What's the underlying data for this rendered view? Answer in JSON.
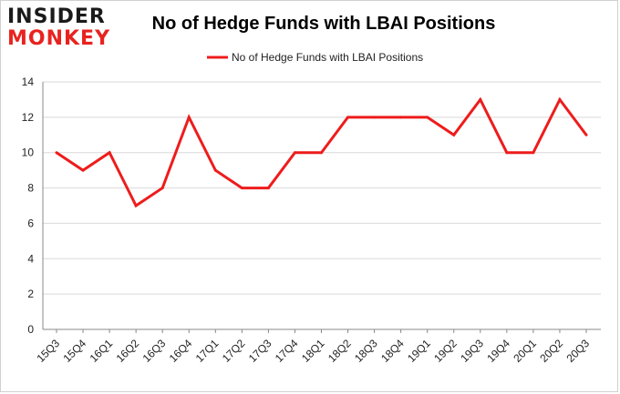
{
  "brand": {
    "line1": "INSIDER",
    "line2": "MONKEY"
  },
  "chart_data": {
    "type": "line",
    "title": "No of Hedge Funds with LBAI Positions",
    "xlabel": "",
    "ylabel": "",
    "categories": [
      "15Q3",
      "15Q4",
      "16Q1",
      "16Q2",
      "16Q3",
      "16Q4",
      "17Q1",
      "17Q2",
      "17Q3",
      "17Q4",
      "18Q1",
      "18Q2",
      "18Q3",
      "18Q4",
      "19Q1",
      "19Q2",
      "19Q3",
      "19Q4",
      "20Q1",
      "20Q2",
      "20Q3"
    ],
    "series": [
      {
        "name": "No of Hedge Funds with LBAI Positions",
        "values": [
          10,
          9,
          10,
          7,
          8,
          12,
          9,
          8,
          8,
          10,
          10,
          12,
          12,
          12,
          12,
          11,
          13,
          10,
          10,
          13,
          11
        ]
      }
    ],
    "ylim": [
      0,
      14
    ],
    "yticks": [
      0,
      2,
      4,
      6,
      8,
      10,
      12,
      14
    ],
    "grid": true,
    "legend_position": "top-center",
    "colors": {
      "line": "#ee1c1c",
      "grid": "#d9d9d9",
      "axis": "#888888"
    }
  }
}
